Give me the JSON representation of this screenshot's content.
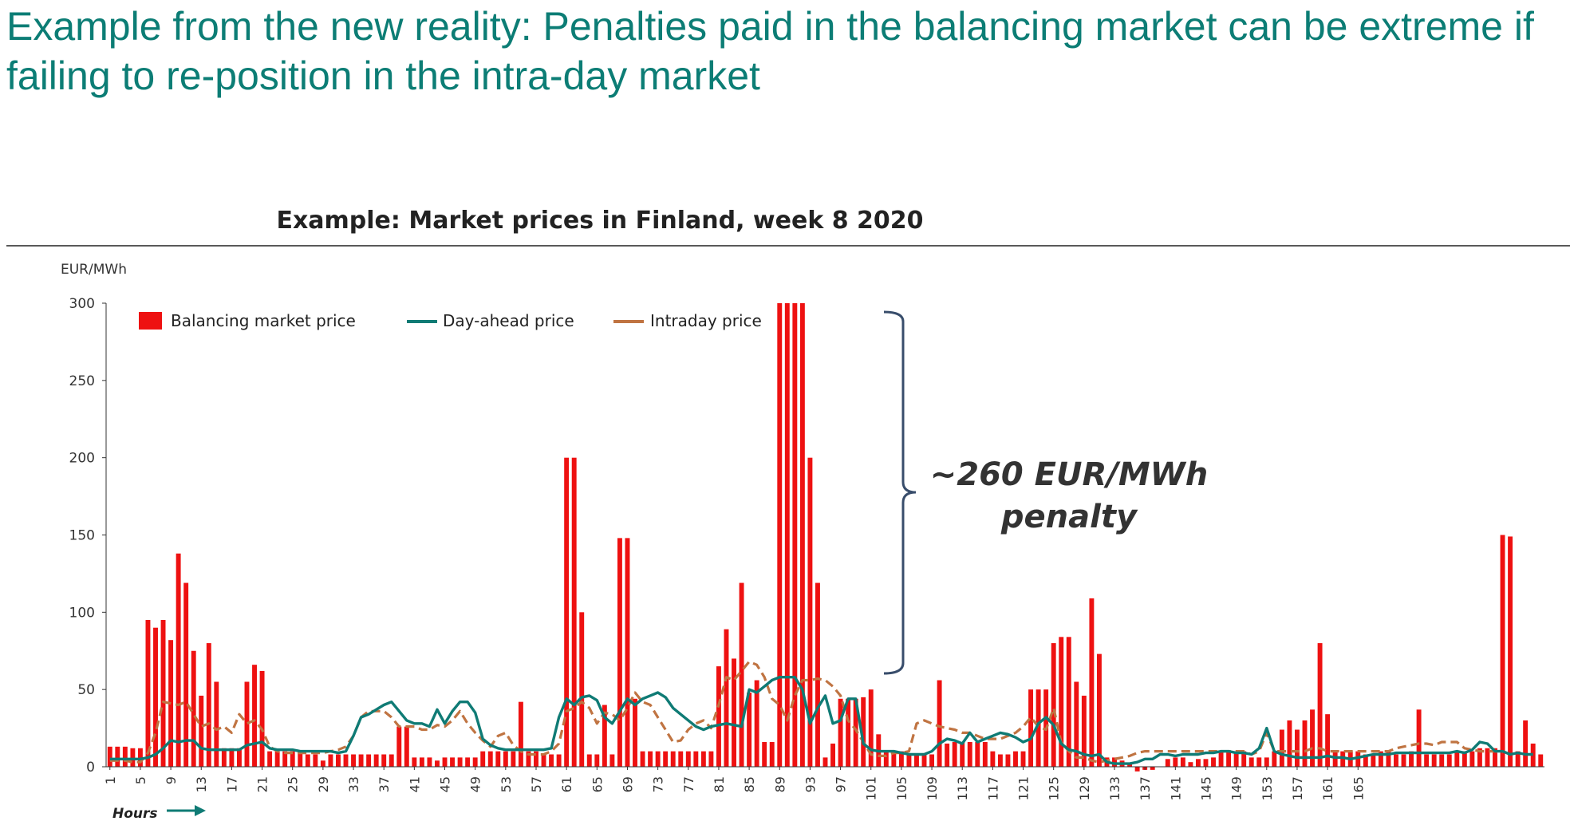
{
  "slide": {
    "title": "Example from the new reality: Penalties paid in the balancing market can be extreme if failing to re-position in the intra-day market"
  },
  "chart_data": {
    "type": "bar",
    "title": "Example: Market prices in Finland, week 8 2020",
    "ylabel": "EUR/MWh",
    "xlabel": "Hours",
    "ylim": [
      0,
      300
    ],
    "y_ticks": [
      0,
      50,
      100,
      150,
      200,
      250,
      300
    ],
    "x_tick_labels": [
      "1",
      "5",
      "9",
      "13",
      "17",
      "21",
      "25",
      "29",
      "33",
      "37",
      "41",
      "45",
      "49",
      "53",
      "57",
      "61",
      "65",
      "69",
      "73",
      "77",
      "81",
      "85",
      "89",
      "93",
      "97",
      "101",
      "105",
      "109",
      "113",
      "117",
      "121",
      "125",
      "129",
      "133",
      "137",
      "141",
      "145",
      "149",
      "153",
      "157",
      "161",
      "165"
    ],
    "legend_position": "top-left",
    "colors": {
      "balancing": "#ee1111",
      "day_ahead": "#0f7b75",
      "intraday": "#c07442",
      "text": "#222222",
      "title_green": "#0c7d75",
      "bracket": "#384d6b"
    },
    "annotation": "~260 EUR/MWh penalty",
    "series": [
      {
        "name": "Balancing market price",
        "type": "bar",
        "values": [
          13,
          13,
          13,
          12,
          12,
          95,
          90,
          95,
          82,
          138,
          119,
          75,
          46,
          80,
          55,
          12,
          12,
          12,
          55,
          66,
          62,
          10,
          10,
          10,
          10,
          10,
          8,
          8,
          4,
          8,
          8,
          8,
          8,
          8,
          8,
          8,
          8,
          8,
          26,
          26,
          6,
          6,
          6,
          4,
          6,
          6,
          6,
          6,
          6,
          10,
          10,
          10,
          10,
          10,
          42,
          10,
          10,
          8,
          8,
          8,
          200,
          200,
          100,
          8,
          8,
          40,
          8,
          148,
          148,
          44,
          10,
          10,
          10,
          10,
          10,
          10,
          10,
          10,
          10,
          10,
          65,
          89,
          70,
          119,
          48,
          56,
          16,
          16,
          300,
          300,
          300,
          300,
          200,
          119,
          6,
          15,
          44,
          44,
          44,
          45,
          50,
          21,
          10,
          10,
          10,
          8,
          8,
          8,
          8,
          56,
          15,
          16,
          16,
          16,
          16,
          16,
          10,
          8,
          8,
          10,
          10,
          50,
          50,
          50,
          80,
          84,
          84,
          55,
          46,
          109,
          73,
          6,
          6,
          4,
          2,
          -3,
          -2,
          -2,
          0,
          5,
          6,
          6,
          3,
          5,
          5,
          6,
          10,
          10,
          10,
          10,
          6,
          6,
          6,
          10,
          24,
          30,
          24,
          30,
          37,
          80,
          34,
          10,
          10,
          10,
          10,
          8,
          8,
          10,
          10,
          8,
          8,
          10,
          37,
          8,
          8,
          8,
          8,
          10,
          10,
          10,
          12,
          12,
          12,
          150,
          149,
          10,
          30,
          15,
          8
        ]
      },
      {
        "name": "Day-ahead price",
        "type": "line",
        "values": [
          5,
          5,
          5,
          5,
          5,
          6,
          8,
          12,
          17,
          16,
          17,
          17,
          12,
          11,
          11,
          11,
          11,
          11,
          14,
          15,
          16,
          12,
          11,
          11,
          11,
          10,
          10,
          10,
          10,
          10,
          9,
          10,
          20,
          32,
          34,
          37,
          40,
          42,
          36,
          30,
          28,
          28,
          26,
          37,
          28,
          36,
          42,
          42,
          35,
          18,
          14,
          12,
          11,
          11,
          11,
          11,
          11,
          11,
          12,
          32,
          44,
          40,
          45,
          46,
          43,
          32,
          28,
          36,
          44,
          40,
          44,
          46,
          48,
          45,
          38,
          34,
          30,
          26,
          24,
          26,
          27,
          28,
          27,
          26,
          50,
          48,
          52,
          56,
          58,
          58,
          58,
          50,
          28,
          38,
          46,
          28,
          30,
          44,
          44,
          15,
          11,
          10,
          10,
          10,
          9,
          8,
          8,
          8,
          10,
          15,
          18,
          17,
          15,
          22,
          16,
          18,
          20,
          22,
          21,
          19,
          16,
          18,
          28,
          32,
          27,
          15,
          11,
          10,
          8,
          7,
          8,
          3,
          2,
          2,
          2,
          3,
          5,
          5,
          8,
          8,
          7,
          8,
          8,
          8,
          9,
          9,
          10,
          10,
          9,
          9,
          8,
          12,
          25,
          10,
          8,
          7,
          6,
          6,
          6,
          6,
          7,
          6,
          6,
          5,
          6,
          7,
          8,
          8,
          8,
          9,
          9,
          9,
          9,
          9,
          9,
          9,
          9,
          10,
          9,
          11,
          16,
          15,
          10,
          10,
          8,
          9,
          8,
          8
        ]
      },
      {
        "name": "Intraday price",
        "type": "line",
        "values": [
          4,
          4,
          4,
          3,
          3,
          9,
          22,
          42,
          41,
          40,
          42,
          34,
          26,
          28,
          24,
          26,
          22,
          34,
          28,
          30,
          24,
          13,
          10,
          9,
          9,
          9,
          9,
          9,
          9,
          10,
          11,
          13,
          20,
          32,
          36,
          36,
          36,
          32,
          26,
          26,
          26,
          24,
          24,
          27,
          26,
          30,
          36,
          28,
          22,
          17,
          13,
          20,
          22,
          14,
          10,
          8,
          8,
          8,
          10,
          15,
          36,
          38,
          42,
          38,
          28,
          35,
          34,
          30,
          38,
          48,
          42,
          40,
          32,
          24,
          16,
          17,
          24,
          28,
          30,
          25,
          40,
          58,
          56,
          62,
          68,
          66,
          58,
          44,
          40,
          30,
          46,
          56,
          56,
          57,
          56,
          52,
          46,
          30,
          24,
          16,
          8,
          7,
          7,
          9,
          9,
          10,
          28,
          30,
          28,
          26,
          25,
          24,
          22,
          22,
          20,
          18,
          18,
          18,
          20,
          22,
          26,
          32,
          26,
          24,
          38,
          16,
          10,
          6,
          6,
          4,
          3,
          4,
          5,
          6,
          7,
          9,
          10,
          10,
          10,
          10,
          10,
          10,
          10,
          10,
          10,
          10,
          10,
          10,
          10,
          10,
          8,
          10,
          22,
          10,
          10,
          10,
          10,
          10,
          12,
          12,
          10,
          10,
          10,
          10,
          10,
          10,
          10,
          10,
          10,
          12,
          13,
          14,
          15,
          15,
          14,
          16,
          16,
          16,
          12,
          11,
          10,
          10,
          10,
          9
        ]
      }
    ]
  }
}
